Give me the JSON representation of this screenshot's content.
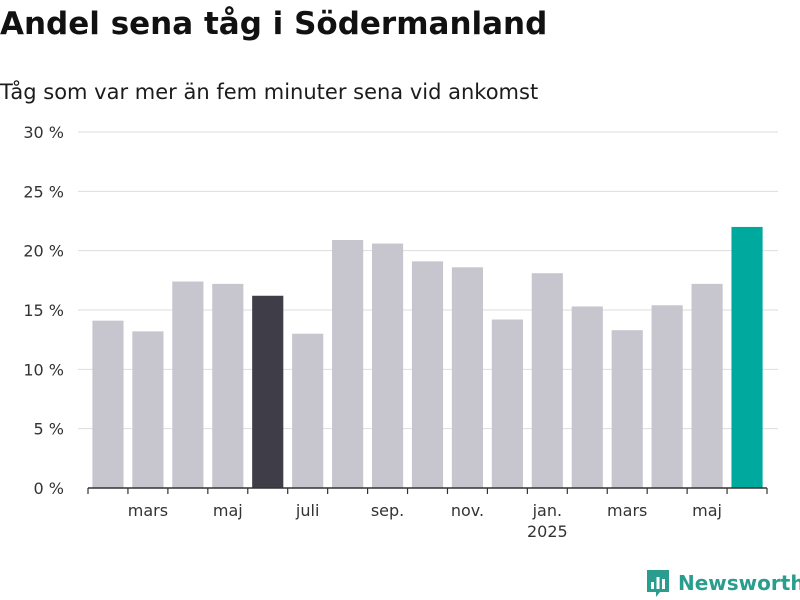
{
  "title": "Andel sena tåg i Södermanland",
  "subtitle": "Tåg som var mer än fem minuter sena vid ankomst",
  "brand": {
    "name": "Newsworthy",
    "logo_icon": "bar-chart-logo-icon"
  },
  "colors": {
    "bar_default": "#c7c6ce",
    "bar_highlight_dark": "#3f3e48",
    "bar_highlight_latest": "#00a99d",
    "grid": "#dddddd",
    "text": "#333333"
  },
  "chart_data": {
    "type": "bar",
    "title": "Andel sena tåg i Södermanland",
    "subtitle": "Tåg som var mer än fem minuter sena vid ankomst",
    "xlabel": "",
    "ylabel": "",
    "ylim": [
      0,
      30
    ],
    "yticks": [
      0,
      5,
      10,
      15,
      20,
      25,
      30
    ],
    "ytick_labels": [
      "0 %",
      "5 %",
      "10 %",
      "15 %",
      "20 %",
      "25 %",
      "30 %"
    ],
    "grid": true,
    "categories": [
      "2024-02",
      "2024-03",
      "2024-04",
      "2024-05",
      "2024-06",
      "2024-07",
      "2024-08",
      "2024-09",
      "2024-10",
      "2024-11",
      "2024-12",
      "2025-01",
      "2025-02",
      "2025-03",
      "2025-04",
      "2025-05",
      "2025-06"
    ],
    "values": [
      14.1,
      13.2,
      17.4,
      17.2,
      16.2,
      13.0,
      20.9,
      20.6,
      19.1,
      18.6,
      14.2,
      18.1,
      15.3,
      13.3,
      15.4,
      17.2,
      22.0
    ],
    "highlight": {
      "2024-06": "dark",
      "2025-06": "latest"
    },
    "xtick_labels": [
      {
        "category": "2024-03",
        "label": "mars"
      },
      {
        "category": "2024-05",
        "label": "maj"
      },
      {
        "category": "2024-07",
        "label": "juli"
      },
      {
        "category": "2024-09",
        "label": "sep."
      },
      {
        "category": "2024-11",
        "label": "nov."
      },
      {
        "category": "2025-01",
        "label": "jan.",
        "sublabel": "2025"
      },
      {
        "category": "2025-03",
        "label": "mars"
      },
      {
        "category": "2025-05",
        "label": "maj"
      }
    ]
  }
}
